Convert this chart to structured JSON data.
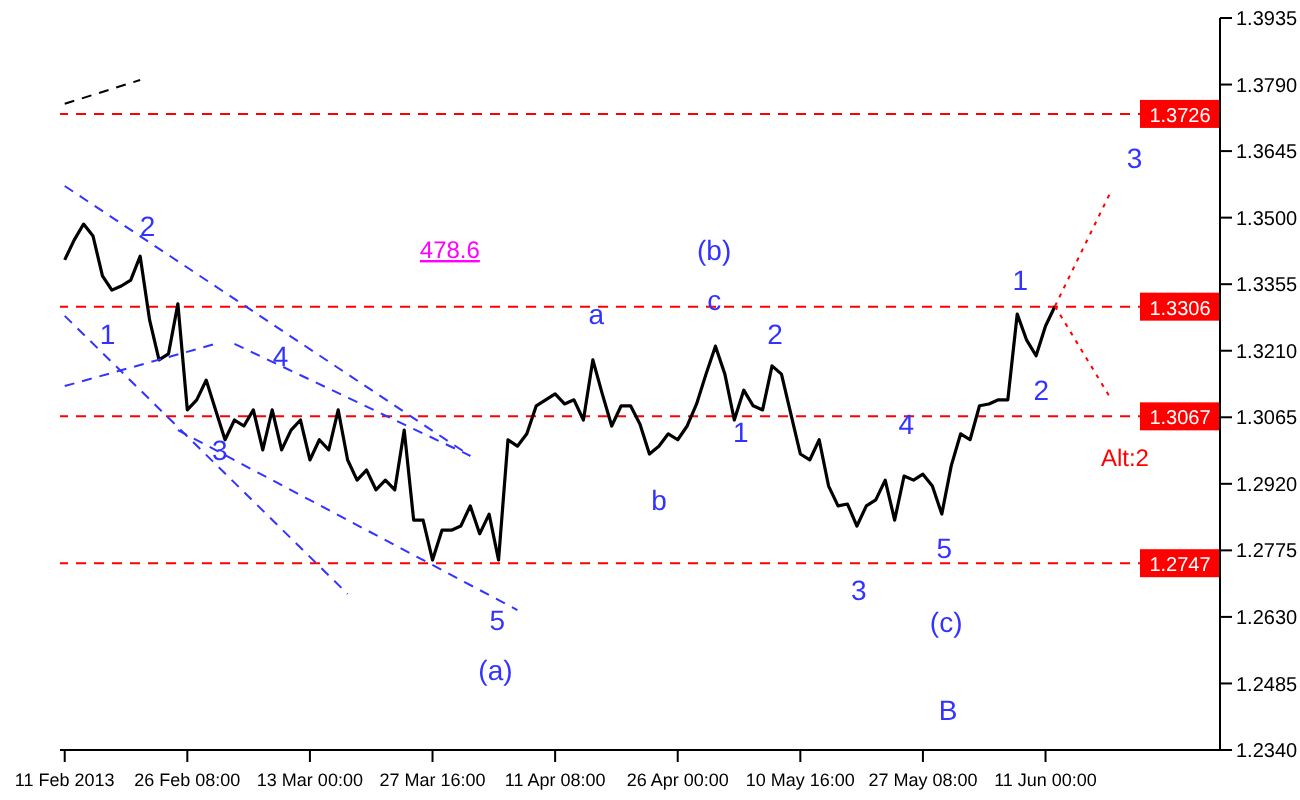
{
  "chart_data": {
    "type": "line",
    "categories": [
      "11 Feb 2013",
      null,
      null,
      null,
      null,
      null,
      null,
      null,
      null,
      null,
      null,
      null,
      null,
      "26 Feb 08:00",
      null,
      null,
      null,
      null,
      null,
      null,
      null,
      null,
      null,
      null,
      null,
      null,
      "13 Mar 00:00",
      null,
      null,
      null,
      null,
      null,
      null,
      null,
      null,
      null,
      null,
      null,
      null,
      "27 Mar 16:00",
      null,
      null,
      null,
      null,
      null,
      null,
      null,
      null,
      null,
      null,
      null,
      null,
      "11 Apr 08:00",
      null,
      null,
      null,
      null,
      null,
      null,
      null,
      null,
      null,
      null,
      null,
      null,
      "26 Apr 00:00",
      null,
      null,
      null,
      null,
      null,
      null,
      null,
      null,
      null,
      null,
      null,
      null,
      "10 May 16:00",
      null,
      null,
      null,
      null,
      null,
      null,
      null,
      null,
      null,
      null,
      null,
      null,
      "27 May 08:00",
      null,
      null,
      null,
      null,
      null,
      null,
      null,
      null,
      null,
      null,
      null,
      null,
      "11 Jun 00:00",
      null,
      null,
      null,
      null,
      null,
      null,
      null,
      null,
      null,
      null,
      null,
      null,
      null,
      null,
      null,
      null,
      null,
      null
    ],
    "series": [
      {
        "color": "#000000",
        "line_style": "solid",
        "values": [
          1.3408,
          1.3451,
          1.3486,
          1.346,
          1.3373,
          1.3342,
          1.3351,
          1.3364,
          1.3416,
          1.3277,
          1.319,
          1.3203,
          1.3312,
          1.3081,
          1.3103,
          1.3146,
          1.3081,
          1.3016,
          1.3059,
          1.3046,
          1.3081,
          1.2994,
          1.3081,
          1.2994,
          1.3037,
          1.3059,
          1.2972,
          1.3016,
          1.2994,
          1.3081,
          1.2972,
          1.2928,
          1.295,
          1.2907,
          1.2928,
          1.2907,
          1.3037,
          1.2841,
          1.2841,
          1.2754,
          1.2819,
          1.2819,
          1.2828,
          1.2872,
          1.2811,
          1.2854,
          1.2754,
          1.3016,
          1.3002,
          1.3029,
          1.309,
          1.3103,
          1.3116,
          1.3094,
          1.3103,
          1.3059,
          1.319,
          1.3116,
          1.3046,
          1.309,
          1.309,
          1.305,
          1.2985,
          1.3002,
          1.3029,
          1.3016,
          1.3046,
          1.3094,
          1.3159,
          1.322,
          1.3159,
          1.3059,
          1.3124,
          1.309,
          1.3081,
          1.3177,
          1.3159,
          1.3072,
          1.2985,
          1.2972,
          1.3016,
          1.2915,
          1.2872,
          1.2876,
          1.2828,
          1.2872,
          1.2885,
          1.2928,
          1.2841,
          1.2937,
          1.2928,
          1.2941,
          1.2915,
          1.2854,
          1.2959,
          1.3029,
          1.3016,
          1.309,
          1.3094,
          1.3103,
          1.3103,
          1.329,
          1.3233,
          1.3199,
          1.3264,
          1.3307,
          null,
          null,
          null,
          null,
          null,
          null,
          null,
          null,
          null,
          null,
          null,
          null,
          null,
          null,
          null,
          null,
          null
        ]
      },
      {
        "color": "#000000",
        "line_style": "dashed",
        "values": [
          1.3748,
          null,
          null,
          null,
          null,
          null,
          null,
          null,
          1.38,
          null,
          null,
          null,
          null,
          null,
          null,
          null,
          null,
          null,
          null,
          null,
          null,
          null,
          null,
          null,
          null,
          null,
          null,
          null,
          null,
          null,
          null,
          null,
          null,
          null,
          null,
          null,
          null,
          null,
          null,
          null,
          null,
          null,
          null,
          null,
          null,
          null,
          null,
          null,
          null,
          null,
          null,
          null,
          null,
          null,
          null,
          null,
          null,
          null,
          null,
          null,
          null,
          null,
          null,
          null,
          null,
          null,
          null,
          null,
          null,
          null,
          null,
          null,
          null,
          null,
          null,
          null,
          null,
          null,
          null,
          null,
          null,
          null,
          null,
          null,
          null,
          null,
          null,
          null,
          null,
          null,
          null,
          null,
          null,
          null,
          null,
          null,
          null,
          null,
          null,
          null,
          null,
          null,
          null,
          null,
          null,
          null,
          null,
          null,
          null,
          null,
          null,
          null,
          null,
          null,
          null,
          null,
          null,
          null,
          null,
          null,
          null,
          null,
          null
        ]
      },
      {
        "color": "#3333ff",
        "line_style": "dashed",
        "values": [
          1.3569,
          null,
          null,
          null,
          null,
          null,
          null,
          null,
          null,
          null,
          null,
          null,
          null,
          null,
          null,
          null,
          null,
          null,
          null,
          null,
          null,
          null,
          null,
          null,
          null,
          null,
          null,
          null,
          null,
          null,
          null,
          null,
          null,
          null,
          null,
          null,
          null,
          null,
          null,
          null,
          null,
          null,
          null,
          1.2981,
          null,
          null,
          null,
          null,
          null,
          null,
          null,
          null,
          null,
          null,
          null,
          null,
          null,
          null,
          null,
          null,
          null,
          null,
          null,
          null,
          null,
          null,
          null,
          null,
          null,
          null,
          null,
          null,
          null,
          null,
          null,
          null,
          null,
          null,
          null,
          null,
          null,
          null,
          null,
          null,
          null,
          null,
          null,
          null,
          null,
          null,
          null,
          null,
          null,
          null,
          null,
          null,
          null,
          null,
          null,
          null,
          null,
          null,
          null,
          null,
          null,
          null,
          null,
          null,
          null,
          null,
          null,
          null,
          null,
          null,
          null,
          null,
          null,
          null,
          null,
          null,
          null,
          null,
          null
        ]
      },
      {
        "color": "#3333ff",
        "line_style": "dashed",
        "values": [
          null,
          null,
          null,
          null,
          null,
          null,
          null,
          null,
          null,
          null,
          null,
          null,
          null,
          null,
          null,
          null,
          null,
          null,
          1.3225,
          null,
          null,
          null,
          null,
          null,
          null,
          null,
          null,
          null,
          null,
          null,
          null,
          null,
          null,
          null,
          null,
          null,
          null,
          null,
          null,
          null,
          null,
          null,
          null,
          1.2981,
          null,
          null,
          null,
          null,
          null,
          null,
          null,
          null,
          null,
          null,
          null,
          null,
          null,
          null,
          null,
          null,
          null,
          null,
          null,
          null,
          null,
          null,
          null,
          null,
          null,
          null,
          null,
          null,
          null,
          null,
          null,
          null,
          null,
          null,
          null,
          null,
          null,
          null,
          null,
          null,
          null,
          null,
          null,
          null,
          null,
          null,
          null,
          null,
          null,
          null,
          null,
          null,
          null,
          null,
          null,
          null,
          null,
          null,
          null,
          null,
          null,
          null,
          null,
          null,
          null,
          null,
          null,
          null,
          null,
          null,
          null,
          null,
          null,
          null,
          null,
          null,
          null,
          null,
          null
        ]
      },
      {
        "color": "#3333ff",
        "line_style": "dashed",
        "values": [
          1.3286,
          null,
          null,
          null,
          null,
          null,
          null,
          null,
          null,
          null,
          null,
          null,
          null,
          null,
          null,
          null,
          null,
          null,
          null,
          null,
          null,
          null,
          null,
          null,
          null,
          null,
          null,
          null,
          null,
          null,
          1.268,
          null,
          null,
          null,
          null,
          null,
          null,
          null,
          null,
          null,
          null,
          null,
          null,
          null,
          null,
          null,
          null,
          null,
          null,
          null,
          null,
          null,
          null,
          null,
          null,
          null,
          null,
          null,
          null,
          null,
          null,
          null,
          null,
          null,
          null,
          null,
          null,
          null,
          null,
          null,
          null,
          null,
          null,
          null,
          null,
          null,
          null,
          null,
          null,
          null,
          null,
          null,
          null,
          null,
          null,
          null,
          null,
          null,
          null,
          null,
          null,
          null,
          null,
          null,
          null,
          null,
          null,
          null,
          null,
          null,
          null,
          null,
          null,
          null,
          null,
          null,
          null,
          null,
          null,
          null,
          null,
          null,
          null,
          null,
          null,
          null,
          null,
          null,
          null,
          null,
          null,
          null,
          null
        ]
      },
      {
        "color": "#3333ff",
        "line_style": "dashed",
        "values": [
          null,
          null,
          null,
          null,
          null,
          null,
          null,
          null,
          null,
          null,
          null,
          null,
          1.3037,
          null,
          null,
          null,
          null,
          null,
          null,
          null,
          null,
          null,
          null,
          null,
          null,
          null,
          null,
          null,
          null,
          null,
          null,
          null,
          null,
          null,
          null,
          null,
          null,
          null,
          null,
          null,
          null,
          null,
          null,
          null,
          null,
          null,
          null,
          null,
          1.2645,
          null,
          null,
          null,
          null,
          null,
          null,
          null,
          null,
          null,
          null,
          null,
          null,
          null,
          null,
          null,
          null,
          null,
          null,
          null,
          null,
          null,
          null,
          null,
          null,
          null,
          null,
          null,
          null,
          null,
          null,
          null,
          null,
          null,
          null,
          null,
          null,
          null,
          null,
          null,
          null,
          null,
          null,
          null,
          null,
          null,
          null,
          null,
          null,
          null,
          null,
          null,
          null,
          null,
          null,
          null,
          null,
          null,
          null,
          null,
          null,
          null,
          null,
          null,
          null,
          null,
          null,
          null,
          null,
          null,
          null,
          null,
          null,
          null,
          null
        ]
      },
      {
        "color": "#3333ff",
        "line_style": "dashed",
        "values": [
          1.3133,
          null,
          null,
          null,
          null,
          null,
          null,
          null,
          null,
          null,
          null,
          null,
          null,
          null,
          null,
          null,
          1.3225,
          null,
          null,
          null,
          null,
          null,
          null,
          null,
          null,
          null,
          null,
          null,
          null,
          null,
          null,
          null,
          null,
          null,
          null,
          null,
          null,
          null,
          null,
          null,
          null,
          null,
          null,
          null,
          null,
          null,
          null,
          null,
          null,
          null,
          null,
          null,
          null,
          null,
          null,
          null,
          null,
          null,
          null,
          null,
          null,
          null,
          null,
          null,
          null,
          null,
          null,
          null,
          null,
          null,
          null,
          null,
          null,
          null,
          null,
          null,
          null,
          null,
          null,
          null,
          null,
          null,
          null,
          null,
          null,
          null,
          null,
          null,
          null,
          null,
          null,
          null,
          null,
          null,
          null,
          null,
          null,
          null,
          null,
          null,
          null,
          null,
          null,
          null,
          null,
          null,
          null,
          null,
          null,
          null,
          null,
          null,
          null,
          null,
          null,
          null,
          null,
          null,
          null,
          null,
          null,
          null,
          null
        ]
      },
      {
        "color": "#ff0000",
        "line_style": "dotted",
        "values": [
          null,
          null,
          null,
          null,
          null,
          null,
          null,
          null,
          null,
          null,
          null,
          null,
          null,
          null,
          null,
          null,
          null,
          null,
          null,
          null,
          null,
          null,
          null,
          null,
          null,
          null,
          null,
          null,
          null,
          null,
          null,
          null,
          null,
          null,
          null,
          null,
          null,
          null,
          null,
          null,
          null,
          null,
          null,
          null,
          null,
          null,
          null,
          null,
          null,
          null,
          null,
          null,
          null,
          null,
          null,
          null,
          null,
          null,
          null,
          null,
          null,
          null,
          null,
          null,
          null,
          null,
          null,
          null,
          null,
          null,
          null,
          null,
          null,
          null,
          null,
          null,
          null,
          null,
          null,
          null,
          null,
          null,
          null,
          null,
          null,
          null,
          null,
          null,
          null,
          null,
          null,
          null,
          null,
          null,
          null,
          null,
          null,
          null,
          null,
          null,
          null,
          null,
          null,
          null,
          null,
          1.3307,
          null,
          null,
          null,
          null,
          null,
          1.356,
          null,
          null,
          null,
          null,
          null,
          null,
          null,
          null,
          null,
          null,
          null
        ]
      },
      {
        "color": "#ff0000",
        "line_style": "dotted",
        "values": [
          null,
          null,
          null,
          null,
          null,
          null,
          null,
          null,
          null,
          null,
          null,
          null,
          null,
          null,
          null,
          null,
          null,
          null,
          null,
          null,
          null,
          null,
          null,
          null,
          null,
          null,
          null,
          null,
          null,
          null,
          null,
          null,
          null,
          null,
          null,
          null,
          null,
          null,
          null,
          null,
          null,
          null,
          null,
          null,
          null,
          null,
          null,
          null,
          null,
          null,
          null,
          null,
          null,
          null,
          null,
          null,
          null,
          null,
          null,
          null,
          null,
          null,
          null,
          null,
          null,
          null,
          null,
          null,
          null,
          null,
          null,
          null,
          null,
          null,
          null,
          null,
          null,
          null,
          null,
          null,
          null,
          null,
          null,
          null,
          null,
          null,
          null,
          null,
          null,
          null,
          null,
          null,
          null,
          null,
          null,
          null,
          null,
          null,
          null,
          null,
          null,
          null,
          null,
          null,
          null,
          1.3307,
          null,
          null,
          null,
          null,
          null,
          1.3103,
          null,
          null,
          null,
          null,
          null,
          null,
          null,
          null,
          null,
          null,
          null
        ]
      }
    ],
    "ylim": [
      1.234,
      1.3935
    ],
    "yticks": [
      {
        "value": 1.234,
        "label": "1.2340"
      },
      1.2485,
      {
        "value": 1.263,
        "label": "1.2630"
      },
      1.2775,
      {
        "value": 1.292,
        "label": "1.2920"
      },
      1.3065,
      {
        "value": 1.321,
        "label": "1.3210"
      },
      1.3355,
      {
        "value": 1.35,
        "label": "1.3500"
      },
      1.3645,
      {
        "value": 1.379,
        "label": "1.3790"
      },
      1.3935
    ],
    "ref_lines": [
      {
        "axis": "y",
        "value": 1.3726,
        "label": "1.3726",
        "color": "#ff0000",
        "line_style": "dashed"
      },
      {
        "axis": "y",
        "value": 1.3306,
        "label": "1.3306",
        "color": "#ff0000",
        "line_style": "dashed"
      },
      {
        "axis": "y",
        "value": 1.3067,
        "label": "1.3067",
        "color": "#ff0000",
        "line_style": "dashed"
      },
      {
        "axis": "y",
        "value": 1.2747,
        "label": "1.2747",
        "color": "#ff0000",
        "line_style": "dashed"
      }
    ],
    "annotations": [
      "1",
      "2",
      "3",
      "4",
      "5",
      "(a)",
      "478.6",
      "(b)",
      "a",
      "b",
      "c",
      "1",
      "2",
      "3",
      "4",
      "5",
      "(c)",
      "B",
      "1",
      "2",
      "3",
      "Alt:2"
    ],
    "grid": false,
    "marker": "none"
  }
}
